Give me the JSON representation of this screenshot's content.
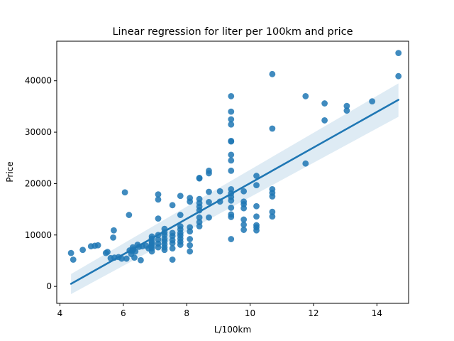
{
  "chart_data": {
    "type": "scatter",
    "title": "Linear regression for liter per 100km and price",
    "xlabel": "L/100km",
    "ylabel": "Price",
    "xlim": [
      3.9,
      15.0
    ],
    "ylim": [
      -3300,
      47700
    ],
    "x_ticks": [
      4,
      6,
      8,
      10,
      12,
      14
    ],
    "y_ticks": [
      0,
      10000,
      20000,
      30000,
      40000
    ],
    "grid": false,
    "colors": {
      "points": "#1f77b4",
      "line": "#1f77b4",
      "band": "#1f77b4"
    },
    "regression": {
      "x": [
        4.35,
        14.68
      ],
      "y": [
        500,
        36300
      ],
      "ci_lower": [
        -1500,
        33000
      ],
      "ci_upper": [
        2400,
        39500
      ]
    },
    "points": [
      [
        4.35,
        6500
      ],
      [
        4.42,
        5200
      ],
      [
        4.72,
        7100
      ],
      [
        4.98,
        7800
      ],
      [
        5.1,
        7900
      ],
      [
        5.2,
        8000
      ],
      [
        5.45,
        6500
      ],
      [
        5.5,
        6700
      ],
      [
        5.6,
        5500
      ],
      [
        5.7,
        10900
      ],
      [
        5.68,
        9500
      ],
      [
        5.72,
        5600
      ],
      [
        5.85,
        5700
      ],
      [
        5.95,
        5400
      ],
      [
        6.05,
        18300
      ],
      [
        6.1,
        5400
      ],
      [
        6.18,
        13900
      ],
      [
        6.2,
        7000
      ],
      [
        6.25,
        6300
      ],
      [
        6.28,
        6900
      ],
      [
        6.3,
        7600
      ],
      [
        6.32,
        7200
      ],
      [
        6.35,
        5600
      ],
      [
        6.38,
        6800
      ],
      [
        6.45,
        8100
      ],
      [
        6.5,
        7700
      ],
      [
        6.55,
        5100
      ],
      [
        6.6,
        7800
      ],
      [
        6.72,
        7900
      ],
      [
        6.8,
        7400
      ],
      [
        6.88,
        7700
      ],
      [
        6.9,
        9700
      ],
      [
        6.9,
        9300
      ],
      [
        6.9,
        8700
      ],
      [
        6.9,
        8400
      ],
      [
        6.9,
        8000
      ],
      [
        6.9,
        7400
      ],
      [
        6.9,
        6800
      ],
      [
        7.1,
        17900
      ],
      [
        7.1,
        16900
      ],
      [
        7.1,
        13200
      ],
      [
        7.1,
        10000
      ],
      [
        7.1,
        9100
      ],
      [
        7.1,
        8300
      ],
      [
        7.1,
        7600
      ],
      [
        7.3,
        11200
      ],
      [
        7.3,
        10500
      ],
      [
        7.3,
        10000
      ],
      [
        7.3,
        9300
      ],
      [
        7.3,
        8800
      ],
      [
        7.3,
        8200
      ],
      [
        7.3,
        7600
      ],
      [
        7.3,
        7100
      ],
      [
        7.55,
        15800
      ],
      [
        7.55,
        10400
      ],
      [
        7.55,
        9800
      ],
      [
        7.55,
        9000
      ],
      [
        7.55,
        8400
      ],
      [
        7.55,
        7400
      ],
      [
        7.55,
        5200
      ],
      [
        7.8,
        17600
      ],
      [
        7.8,
        13900
      ],
      [
        7.8,
        11700
      ],
      [
        7.8,
        11100
      ],
      [
        7.8,
        10400
      ],
      [
        7.8,
        9900
      ],
      [
        7.8,
        9300
      ],
      [
        7.8,
        8700
      ],
      [
        7.8,
        8100
      ],
      [
        8.1,
        16500
      ],
      [
        8.1,
        17200
      ],
      [
        8.1,
        11500
      ],
      [
        8.1,
        10700
      ],
      [
        8.1,
        9200
      ],
      [
        8.1,
        8000
      ],
      [
        8.1,
        6800
      ],
      [
        8.4,
        21000
      ],
      [
        8.4,
        21100
      ],
      [
        8.4,
        17000
      ],
      [
        8.4,
        16200
      ],
      [
        8.4,
        15500
      ],
      [
        8.4,
        14800
      ],
      [
        8.4,
        13400
      ],
      [
        8.4,
        12500
      ],
      [
        8.4,
        11700
      ],
      [
        8.7,
        22500
      ],
      [
        8.7,
        22000
      ],
      [
        8.7,
        18400
      ],
      [
        8.7,
        16400
      ],
      [
        8.7,
        13400
      ],
      [
        9.05,
        18500
      ],
      [
        9.05,
        16500
      ],
      [
        9.4,
        37000
      ],
      [
        9.4,
        34000
      ],
      [
        9.4,
        32500
      ],
      [
        9.4,
        31500
      ],
      [
        9.4,
        28300
      ],
      [
        9.4,
        28200
      ],
      [
        9.4,
        25600
      ],
      [
        9.4,
        24500
      ],
      [
        9.4,
        22500
      ],
      [
        9.4,
        18900
      ],
      [
        9.4,
        18100
      ],
      [
        9.4,
        17400
      ],
      [
        9.4,
        16700
      ],
      [
        9.4,
        15300
      ],
      [
        9.4,
        14000
      ],
      [
        9.4,
        13500
      ],
      [
        9.4,
        9200
      ],
      [
        9.8,
        18500
      ],
      [
        9.8,
        16500
      ],
      [
        9.8,
        16000
      ],
      [
        9.8,
        15200
      ],
      [
        9.8,
        13000
      ],
      [
        9.8,
        12000
      ],
      [
        9.8,
        11000
      ],
      [
        10.2,
        21500
      ],
      [
        10.2,
        19700
      ],
      [
        10.2,
        15600
      ],
      [
        10.2,
        13600
      ],
      [
        10.2,
        11900
      ],
      [
        10.2,
        11500
      ],
      [
        10.2,
        10900
      ],
      [
        10.7,
        41300
      ],
      [
        10.7,
        30700
      ],
      [
        10.7,
        18900
      ],
      [
        10.7,
        18200
      ],
      [
        10.7,
        17500
      ],
      [
        10.7,
        14500
      ],
      [
        10.7,
        13600
      ],
      [
        11.75,
        37000
      ],
      [
        11.75,
        23900
      ],
      [
        12.35,
        35600
      ],
      [
        12.35,
        32300
      ],
      [
        13.05,
        35100
      ],
      [
        13.05,
        34200
      ],
      [
        13.85,
        36000
      ],
      [
        14.68,
        45400
      ],
      [
        14.68,
        40900
      ]
    ]
  }
}
